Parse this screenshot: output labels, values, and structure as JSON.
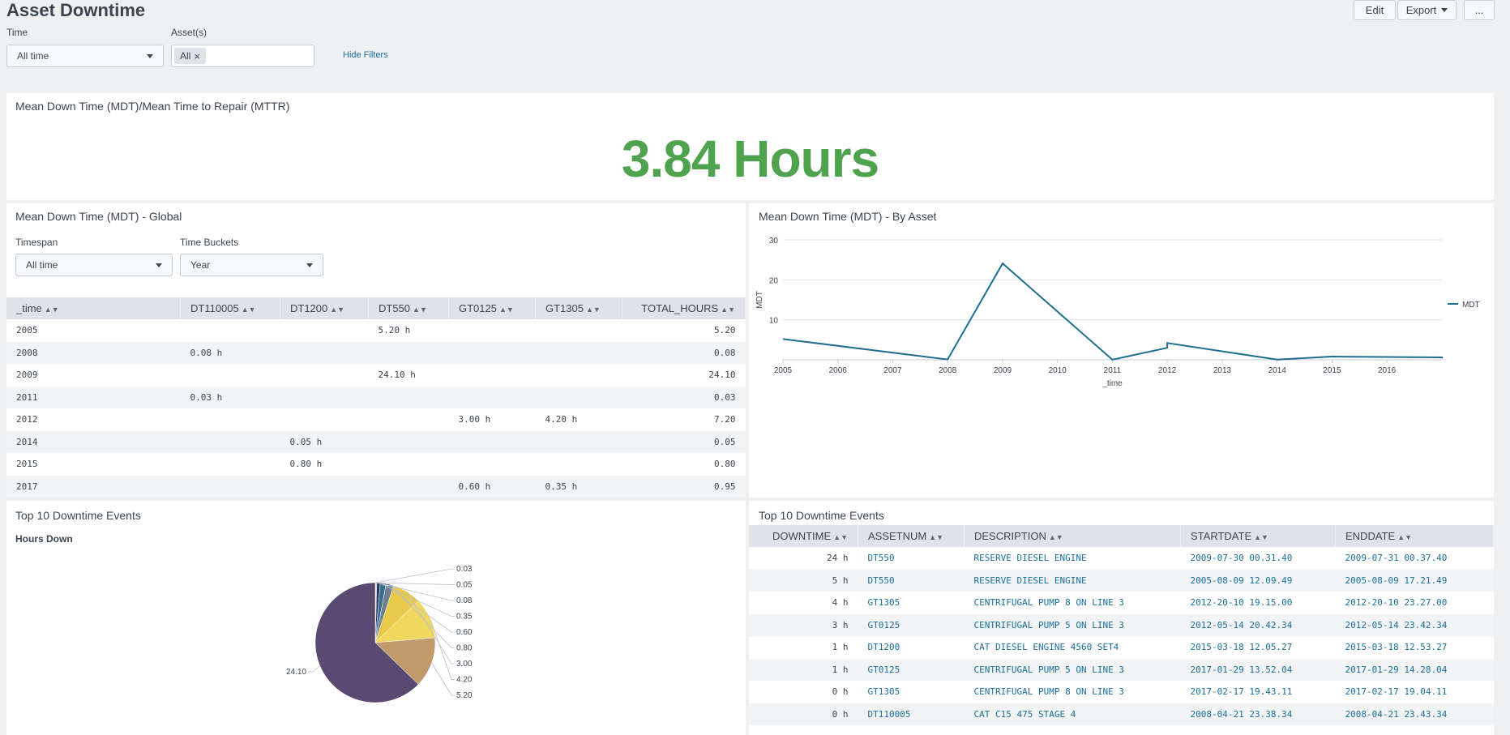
{
  "page": {
    "title": "Asset Downtime",
    "buttons": {
      "edit": "Edit",
      "export": "Export",
      "more": "..."
    }
  },
  "filters": {
    "time_label": "Time",
    "time_value": "All time",
    "assets_label": "Asset(s)",
    "assets_token": "All",
    "hide_filters": "Hide Filters"
  },
  "mttr_panel": {
    "title": "Mean Down Time (MDT)/Mean Time to Repair (MTTR)",
    "value": "3.84 Hours",
    "value_color": "#4fa34f"
  },
  "global_panel": {
    "title": "Mean Down Time (MDT) - Global",
    "timespan_label": "Timespan",
    "timespan_value": "All time",
    "buckets_label": "Time Buckets",
    "buckets_value": "Year",
    "columns": [
      "_time",
      "DT110005",
      "DT1200",
      "DT550",
      "GT0125",
      "GT1305",
      "TOTAL_HOURS"
    ],
    "rows": [
      [
        "2005",
        "",
        "",
        "5.20 h",
        "",
        "",
        "5.20"
      ],
      [
        "2008",
        "0.08 h",
        "",
        "",
        "",
        "",
        "0.08"
      ],
      [
        "2009",
        "",
        "",
        "24.10 h",
        "",
        "",
        "24.10"
      ],
      [
        "2011",
        "0.03 h",
        "",
        "",
        "",
        "",
        "0.03"
      ],
      [
        "2012",
        "",
        "",
        "",
        "3.00 h",
        "4.20 h",
        "7.20"
      ],
      [
        "2014",
        "",
        "0.05 h",
        "",
        "",
        "",
        "0.05"
      ],
      [
        "2015",
        "",
        "0.80 h",
        "",
        "",
        "",
        "0.80"
      ],
      [
        "2017",
        "",
        "",
        "",
        "0.60 h",
        "0.35 h",
        "0.95"
      ]
    ]
  },
  "asset_panel": {
    "title": "Mean Down Time (MDT) - By Asset",
    "series_color": "#1e6e8e"
  },
  "pie_panel": {
    "title": "Top 10 Downtime Events",
    "subtitle": "Hours Down"
  },
  "events_panel": {
    "title": "Top 10 Downtime Events",
    "columns": [
      "DOWNTIME",
      "ASSETNUM",
      "DESCRIPTION",
      "STARTDATE",
      "ENDDATE"
    ],
    "rows": [
      [
        "24 h",
        "DT550",
        "RESERVE DIESEL ENGINE",
        "2009-07-30 00.31.40",
        "2009-07-31 00.37.40"
      ],
      [
        "5 h",
        "DT550",
        "RESERVE DIESEL ENGINE",
        "2005-08-09 12.09.49",
        "2005-08-09 17.21.49"
      ],
      [
        "4 h",
        "GT1305",
        "CENTRIFUGAL PUMP 8 ON LINE 3",
        "2012-20-10 19.15.00",
        "2012-20-10 23.27.00"
      ],
      [
        "3 h",
        "GT0125",
        "CENTRIFUGAL PUMP 5 ON LINE 3",
        "2012-05-14 20.42.34",
        "2012-05-14 23.42.34"
      ],
      [
        "1 h",
        "DT1200",
        "CAT DIESEL ENGINE 4560 SET4",
        "2015-03-18 12.05.27",
        "2015-03-18 12.53.27"
      ],
      [
        "1 h",
        "GT0125",
        "CENTRIFUGAL PUMP 5 ON LINE 3",
        "2017-01-29 13.52.04",
        "2017-01-29 14.28.04"
      ],
      [
        "0 h",
        "GT1305",
        "CENTRIFUGAL PUMP 8 ON LINE 3",
        "2017-02-17 19.43.11",
        "2017-02-17 19.04.11"
      ],
      [
        "0 h",
        "DT110005",
        "CAT C15 475 STAGE 4",
        "2008-04-21 23.38.34",
        "2008-04-21 23.43.34"
      ]
    ]
  },
  "chart_data": [
    {
      "type": "line",
      "title": "Mean Down Time (MDT) - By Asset",
      "xlabel": "_time",
      "ylabel": "MDT",
      "x_ticks": [
        "2005",
        "2006",
        "2007",
        "2008",
        "2009",
        "2010",
        "2011",
        "2012",
        "2013",
        "2014",
        "2015",
        "2016"
      ],
      "yticks": [
        10,
        20,
        30
      ],
      "ylim": [
        0,
        30
      ],
      "xlim": [
        "2005",
        "2017"
      ],
      "legend_position": "right",
      "grid": true,
      "series": [
        {
          "name": "MDT",
          "points": [
            {
              "x": "2005-01-01",
              "y": 5.2
            },
            {
              "x": "2008-01-01",
              "y": 0.08
            },
            {
              "x": "2009-01-01",
              "y": 24.1
            },
            {
              "x": "2011-01-01",
              "y": 0.03
            },
            {
              "x": "2012-01-01",
              "y": 3.0
            },
            {
              "x": "2012-01-01",
              "y": 4.2
            },
            {
              "x": "2014-01-01",
              "y": 0.05
            },
            {
              "x": "2015-01-01",
              "y": 0.8
            },
            {
              "x": "2017-01-01",
              "y": 0.6
            },
            {
              "x": "2017-01-01",
              "y": 0.35
            }
          ]
        }
      ]
    },
    {
      "type": "pie",
      "title": "Hours Down",
      "labels": [
        "0.03",
        "0.05",
        "0.08",
        "0.35",
        "0.60",
        "0.80",
        "3.00",
        "4.20",
        "5.20",
        "24.10"
      ],
      "values": [
        0.03,
        0.05,
        0.08,
        0.35,
        0.6,
        0.8,
        3.0,
        4.2,
        5.2,
        24.1
      ],
      "colors": [
        "#7b9bb0",
        "#3aa6a5",
        "#5fbf6f",
        "#293a6b",
        "#3b6e8f",
        "#708090",
        "#e8c94a",
        "#f0d85e",
        "#c19a6b",
        "#5a4a72"
      ]
    }
  ]
}
